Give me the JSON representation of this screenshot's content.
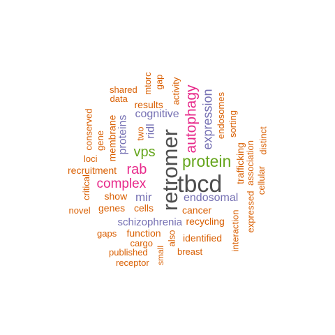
{
  "palette": {
    "dark": "#4d4d4d",
    "green": "#66a61e",
    "magenta": "#e7298a",
    "purple": "#7570b3",
    "orange": "#d95f02"
  },
  "words": {
    "retromer": "retromer",
    "tbcd": "tbcd",
    "protein": "protein",
    "autophagy": "autophagy",
    "vps": "vps",
    "rab": "rab",
    "complex": "complex",
    "expression": "expression",
    "endosomal": "endosomal",
    "cognitive": "cognitive",
    "proteins": "proteins",
    "ridl": "ridl",
    "mir": "mir",
    "schizophrenia": "schizophrenia",
    "endosomes": "endosomes",
    "cancer": "cancer",
    "recycling": "recycling",
    "identified": "identified",
    "breast": "breast",
    "also": "also",
    "small": "small",
    "function": "function",
    "cargo": "cargo",
    "published": "published",
    "receptor": "receptor",
    "gaps": "gaps",
    "show": "show",
    "genes": "genes",
    "cells": "cells",
    "novel": "novel",
    "critical": "critical",
    "recruitment": "recruitment",
    "loci": "loci",
    "gene": "gene",
    "conserved": "conserved",
    "membrane": "membrane",
    "two": "two",
    "results": "results",
    "data": "data",
    "shared": "shared",
    "mtorc": "mtorc",
    "gap": "gap",
    "activity": "activity",
    "sorting": "sorting",
    "trafficking": "trafficking",
    "association": "association",
    "cellular": "cellular",
    "distinct": "distinct",
    "expressed": "expressed",
    "interaction": "interaction"
  }
}
